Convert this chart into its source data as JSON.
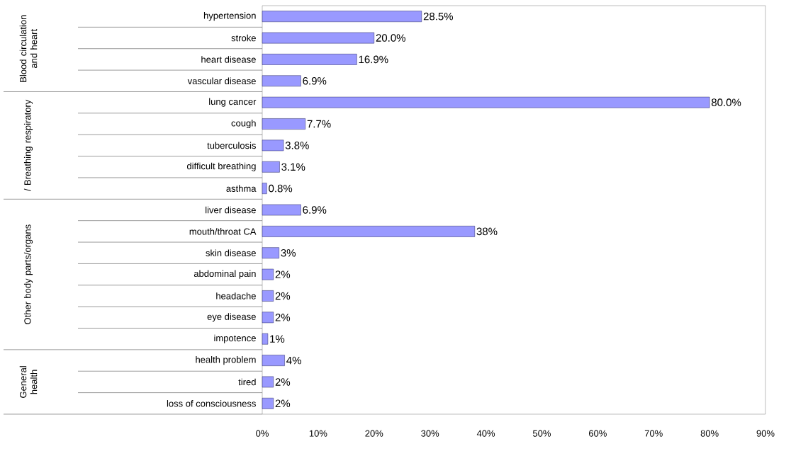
{
  "chart_data": {
    "type": "bar",
    "orientation": "horizontal",
    "color": "#9999ff",
    "categories": [
      "hypertension",
      "stroke",
      "heart disease",
      "vascular disease",
      "lung cancer",
      "cough",
      "tuberculosis",
      "difficult breathing",
      "asthma",
      "liver disease",
      "mouth/throat CA",
      "skin disease",
      "abdominal pain",
      "headache",
      "eye disease",
      "impotence",
      "health problem",
      "tired",
      "loss of consciousness"
    ],
    "values": [
      28.5,
      20.0,
      16.9,
      6.9,
      80.0,
      7.7,
      3.8,
      3.1,
      0.8,
      6.9,
      38,
      3,
      2,
      2,
      2,
      1,
      4,
      2,
      2
    ],
    "value_labels": [
      "28.5%",
      "20.0%",
      "16.9%",
      "6.9%",
      "80.0%",
      "7.7%",
      "3.8%",
      "3.1%",
      "0.8%",
      "6.9%",
      "38%",
      "3%",
      "2%",
      "2%",
      "2%",
      "1%",
      "4%",
      "2%",
      "2%"
    ],
    "xlim": [
      0,
      90
    ],
    "xticks": [
      {
        "value": 0,
        "label": "0%"
      },
      {
        "value": 10,
        "label": "10%"
      },
      {
        "value": 20,
        "label": "20%"
      },
      {
        "value": 30,
        "label": "30%"
      },
      {
        "value": 40,
        "label": "40%"
      },
      {
        "value": 50,
        "label": "50%"
      },
      {
        "value": 60,
        "label": "60%"
      },
      {
        "value": 70,
        "label": "70%"
      },
      {
        "value": 80,
        "label": "80%"
      },
      {
        "value": 90,
        "label": "90%"
      }
    ],
    "annotations": [
      "Blood circulation and heart",
      "/ Breathing respiratory",
      "Other body parts/organs",
      "General health"
    ]
  }
}
